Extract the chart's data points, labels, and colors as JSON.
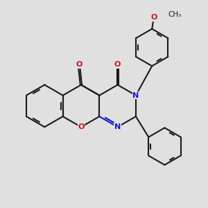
{
  "bg_color": "#e0e0e0",
  "bond_color": "#1a1a1a",
  "nitrogen_color": "#1414cc",
  "oxygen_color": "#cc1414",
  "lw": 1.5,
  "figsize": [
    3.0,
    3.0
  ],
  "dpi": 100,
  "xlim": [
    -2.6,
    2.8
  ],
  "ylim": [
    -2.0,
    2.4
  ]
}
